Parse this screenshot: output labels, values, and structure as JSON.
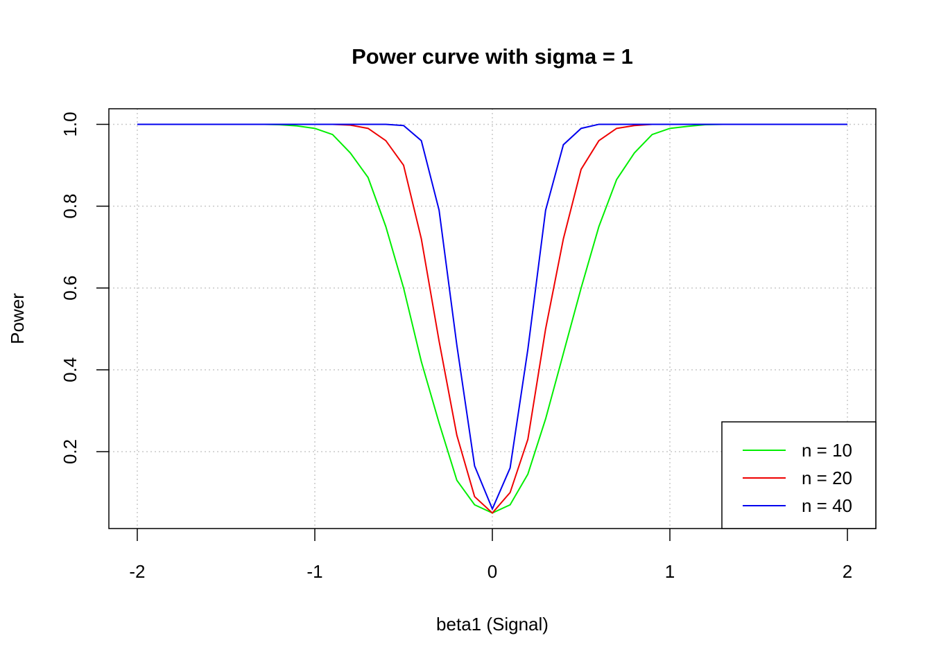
{
  "chart_data": {
    "type": "line",
    "title": "Power curve with sigma = 1",
    "xlabel": "beta1 (Signal)",
    "ylabel": "Power",
    "x": [
      -2,
      -1.9,
      -1.8,
      -1.7,
      -1.6,
      -1.5,
      -1.4,
      -1.3,
      -1.2,
      -1.1,
      -1,
      -0.9,
      -0.8,
      -0.7,
      -0.6,
      -0.5,
      -0.4,
      -0.3,
      -0.2,
      -0.1,
      0,
      0.1,
      0.2,
      0.3,
      0.4,
      0.5,
      0.6,
      0.7,
      0.8,
      0.9,
      1,
      1.1,
      1.2,
      1.3,
      1.4,
      1.5,
      1.6,
      1.7,
      1.8,
      1.9,
      2
    ],
    "series": [
      {
        "name": "n = 10",
        "color": "#00ee00",
        "values": [
          1,
          1,
          1,
          1,
          1,
          1,
          1,
          1,
          0.999,
          0.996,
          0.99,
          0.975,
          0.93,
          0.87,
          0.75,
          0.6,
          0.42,
          0.27,
          0.13,
          0.07,
          0.05,
          0.07,
          0.145,
          0.28,
          0.44,
          0.6,
          0.75,
          0.865,
          0.93,
          0.975,
          0.99,
          0.995,
          0.999,
          1,
          1,
          1,
          1,
          1,
          1,
          1,
          1
        ]
      },
      {
        "name": "n = 20",
        "color": "#ee0000",
        "values": [
          1,
          1,
          1,
          1,
          1,
          1,
          1,
          1,
          1,
          1,
          1,
          1,
          0.998,
          0.99,
          0.96,
          0.9,
          0.72,
          0.47,
          0.24,
          0.09,
          0.05,
          0.1,
          0.23,
          0.5,
          0.72,
          0.89,
          0.96,
          0.99,
          0.997,
          1,
          1,
          1,
          1,
          1,
          1,
          1,
          1,
          1,
          1,
          1,
          1
        ]
      },
      {
        "name": "n = 40",
        "color": "#0000ee",
        "values": [
          1,
          1,
          1,
          1,
          1,
          1,
          1,
          1,
          1,
          1,
          1,
          1,
          1,
          1,
          1,
          0.997,
          0.96,
          0.79,
          0.46,
          0.165,
          0.06,
          0.16,
          0.45,
          0.79,
          0.95,
          0.99,
          1,
          1,
          1,
          1,
          1,
          1,
          1,
          1,
          1,
          1,
          1,
          1,
          1,
          1,
          1
        ]
      }
    ],
    "xlim": [
      -2.16,
      2.16
    ],
    "ylim": [
      0.012,
      1.038
    ],
    "xticks": [
      -2,
      -1,
      0,
      1,
      2
    ],
    "yticks": [
      0.2,
      0.4,
      0.6,
      0.8,
      {
        "value": 1,
        "label": "1.0"
      }
    ],
    "grid": true,
    "legend": "bottom-right"
  }
}
